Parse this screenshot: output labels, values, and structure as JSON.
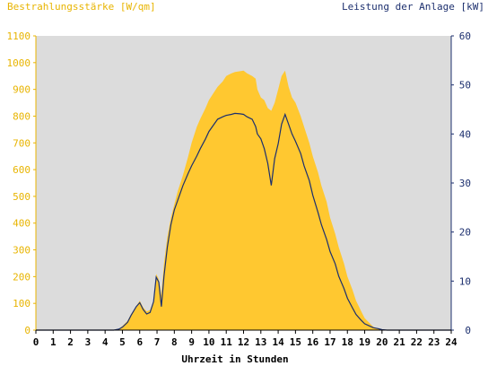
{
  "chart_data": {
    "type": "area",
    "title_left": "Bestrahlungsstärke [W/qm]",
    "title_right": "Leistung der Anlage [kW]",
    "xlabel": "Uhrzeit in Stunden",
    "xlim": [
      0,
      24
    ],
    "ylim_left": [
      0,
      1100
    ],
    "ylim_right": [
      0,
      60
    ],
    "xticks": [
      "0",
      "1",
      "2",
      "3",
      "4",
      "5",
      "6",
      "7",
      "8",
      "9",
      "10",
      "11",
      "12",
      "13",
      "14",
      "15",
      "16",
      "17",
      "18",
      "19",
      "20",
      "21",
      "22",
      "23",
      "24"
    ],
    "yticks_left": [
      "0",
      "100",
      "200",
      "300",
      "400",
      "500",
      "600",
      "700",
      "800",
      "900",
      "1000",
      "1100"
    ],
    "yticks_right": [
      "0",
      "10",
      "20",
      "30",
      "40",
      "50",
      "60"
    ],
    "grid": false,
    "colors": {
      "plot_bg": "#dcdcdc",
      "area": "#ffc830",
      "line": "#1c2f6e",
      "left_axis": "#e8b400",
      "right_axis": "#1c2f6e"
    },
    "series": [
      {
        "axis": "left",
        "style": "area",
        "x": [
          0,
          4.5,
          4.8,
          5.0,
          5.3,
          5.5,
          5.8,
          6.0,
          6.2,
          6.4,
          6.6,
          6.8,
          6.95,
          7.1,
          7.25,
          7.4,
          7.6,
          7.8,
          8.0,
          8.2,
          8.5,
          8.8,
          9.0,
          9.3,
          9.5,
          9.8,
          10.0,
          10.3,
          10.5,
          10.8,
          11.0,
          11.3,
          11.5,
          11.8,
          12.0,
          12.2,
          12.5,
          12.7,
          12.8,
          13.0,
          13.2,
          13.4,
          13.6,
          13.8,
          14.0,
          14.2,
          14.4,
          14.6,
          14.8,
          15.0,
          15.3,
          15.5,
          15.8,
          16.0,
          16.3,
          16.5,
          16.8,
          17.0,
          17.3,
          17.5,
          17.8,
          18.0,
          18.3,
          18.5,
          18.8,
          19.0,
          19.3,
          19.5,
          19.8,
          20.0,
          20.3,
          20.5,
          21.0,
          24
        ],
        "y": [
          0,
          0,
          5,
          15,
          35,
          60,
          90,
          110,
          85,
          70,
          75,
          110,
          210,
          190,
          130,
          250,
          350,
          420,
          470,
          520,
          580,
          650,
          700,
          760,
          790,
          830,
          860,
          890,
          910,
          930,
          950,
          960,
          965,
          968,
          970,
          960,
          950,
          940,
          900,
          870,
          860,
          830,
          820,
          850,
          900,
          950,
          970,
          910,
          870,
          850,
          800,
          760,
          700,
          650,
          590,
          540,
          480,
          420,
          360,
          310,
          250,
          200,
          150,
          110,
          70,
          45,
          25,
          12,
          5,
          2,
          0,
          0,
          0,
          0
        ]
      },
      {
        "axis": "right",
        "style": "line",
        "x": [
          0,
          4.5,
          4.8,
          5.0,
          5.3,
          5.5,
          5.8,
          6.0,
          6.2,
          6.4,
          6.6,
          6.8,
          6.95,
          7.1,
          7.25,
          7.4,
          7.6,
          7.8,
          8.0,
          8.2,
          8.5,
          8.8,
          9.0,
          9.3,
          9.5,
          9.8,
          10.0,
          10.3,
          10.5,
          10.8,
          11.0,
          11.3,
          11.5,
          11.8,
          12.0,
          12.2,
          12.5,
          12.7,
          12.8,
          13.0,
          13.2,
          13.4,
          13.6,
          13.8,
          14.0,
          14.2,
          14.4,
          14.6,
          14.8,
          15.0,
          15.3,
          15.5,
          15.8,
          16.0,
          16.3,
          16.5,
          16.8,
          17.0,
          17.3,
          17.5,
          17.8,
          18.0,
          18.3,
          18.5,
          18.8,
          19.0,
          19.3,
          19.5,
          19.8,
          20.0,
          20.3,
          20.5,
          21.0,
          24
        ],
        "y": [
          0,
          0,
          0.2,
          0.6,
          1.6,
          3,
          4.8,
          5.6,
          4.2,
          3.3,
          3.6,
          5.8,
          10.8,
          9.8,
          4.8,
          11,
          17,
          21.5,
          24.5,
          26.5,
          29.5,
          32,
          33.5,
          35.5,
          37,
          39,
          40.5,
          42,
          43,
          43.5,
          43.8,
          44,
          44.2,
          44.1,
          44,
          43.5,
          43,
          41.5,
          40,
          39,
          37,
          34,
          29.5,
          35,
          38,
          42,
          44,
          42,
          40,
          38.5,
          36,
          33.5,
          30.5,
          27.5,
          24,
          21.5,
          18.5,
          16,
          13.5,
          11,
          8.5,
          6.5,
          4.5,
          3.2,
          2,
          1.3,
          0.8,
          0.5,
          0.3,
          0.1,
          0,
          0,
          0,
          0
        ]
      }
    ]
  }
}
